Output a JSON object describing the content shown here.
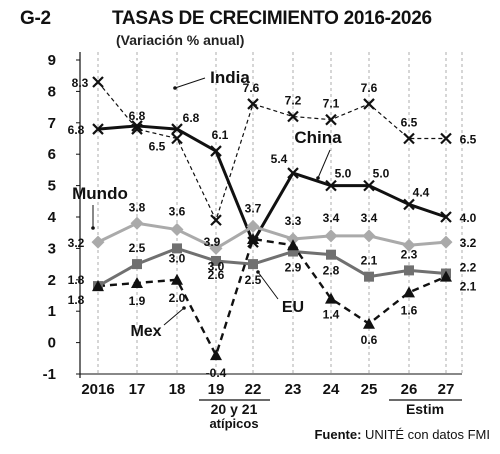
{
  "header": {
    "code": "G-2",
    "title": "TASAS DE CRECIMIENTO 2016-2026",
    "subtitle": "(Variación % anual)"
  },
  "footer": {
    "source_label": "Fuente:",
    "source_text": " UNITÉ con datos FMI",
    "group1": "20 y 21",
    "group1_sub": "atípicos",
    "group2": "Estim"
  },
  "chart_data": {
    "type": "line",
    "categories": [
      "2016",
      "17",
      "18",
      "19",
      "22",
      "23",
      "24",
      "25",
      "26",
      "27"
    ],
    "ylim": [
      -1,
      9
    ],
    "yticks": [
      "-1",
      "0",
      "1",
      "2",
      "3",
      "4",
      "5",
      "6",
      "7",
      "8",
      "9"
    ],
    "grid": "vertical dashed",
    "series": [
      {
        "name": "India",
        "values": [
          8.3,
          6.8,
          6.5,
          3.9,
          7.6,
          7.2,
          7.1,
          7.6,
          6.5,
          6.5
        ],
        "labels": [
          "8.3",
          "6.8",
          "6.5",
          "3.9",
          "7.6",
          "7.2",
          "7.1",
          "7.6",
          "6.5",
          "6.5"
        ],
        "color": "#111111",
        "style": "dashed-thin",
        "marker": "x"
      },
      {
        "name": "China",
        "values": [
          6.8,
          6.9,
          6.8,
          6.1,
          3.2,
          5.4,
          5.0,
          5.0,
          4.4,
          4.0
        ],
        "labels": [
          "6.8",
          "",
          "6.8",
          "6.1",
          "",
          "5.4",
          "5.0",
          "5.0",
          "4.4",
          "4.0"
        ],
        "color": "#111111",
        "style": "solid-thick",
        "marker": "x"
      },
      {
        "name": "Mundo",
        "values": [
          3.2,
          3.8,
          3.6,
          3.0,
          3.7,
          3.3,
          3.4,
          3.4,
          3.1,
          3.2
        ],
        "labels": [
          "3.2",
          "3.8",
          "3.6",
          "3.0",
          "3.7",
          "3.3",
          "3.4",
          "3.4",
          "",
          "3.2"
        ],
        "color": "#aaaaaa",
        "style": "solid-thick",
        "marker": "diamond"
      },
      {
        "name": "EU",
        "values": [
          1.8,
          2.5,
          3.0,
          2.6,
          2.5,
          2.9,
          2.8,
          2.1,
          2.3,
          2.2
        ],
        "labels": [
          "1.8",
          "2.5",
          "3.0",
          "2.6",
          "2.5",
          "2.9",
          "2.8",
          "2.1",
          "2.3",
          "2.2"
        ],
        "color": "#707070",
        "style": "solid-thick",
        "marker": "square"
      },
      {
        "name": "Mex",
        "values": [
          1.8,
          1.9,
          2.0,
          -0.4,
          3.3,
          3.1,
          1.4,
          0.6,
          1.6,
          2.1
        ],
        "labels": [
          "1.8",
          "1.9",
          "2.0",
          "-0.4",
          "",
          "",
          "1.4",
          "0.6",
          "1.6",
          "2.1"
        ],
        "color": "#111111",
        "style": "dashed-thick",
        "marker": "triangle"
      }
    ]
  }
}
